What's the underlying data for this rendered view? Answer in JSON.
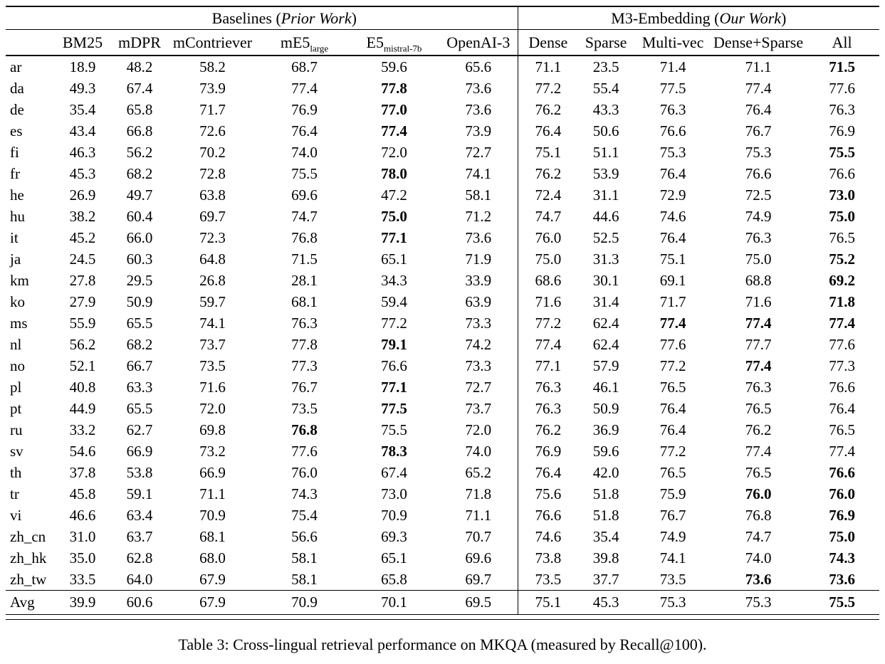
{
  "page": {
    "background": "#ffffff",
    "text_color": "#000000",
    "rule_color": "#000000"
  },
  "caption": "Table 3: Cross-lingual retrieval performance on MKQA (measured by Recall@100).",
  "table": {
    "groups": [
      {
        "prefix": "Baselines (",
        "italic": "Prior Work",
        "suffix": ")",
        "span": 6
      },
      {
        "prefix": "M3-Embedding (",
        "italic": "Our Work",
        "suffix": ")",
        "span": 5
      }
    ],
    "columns": [
      {
        "label": "BM25",
        "sub": ""
      },
      {
        "label": "mDPR",
        "sub": ""
      },
      {
        "label": "mContriever",
        "sub": ""
      },
      {
        "label": "mE5",
        "sub": "large"
      },
      {
        "label": "E5",
        "sub": "mistral-7b"
      },
      {
        "label": "OpenAI-3",
        "sub": ""
      },
      {
        "label": "Dense",
        "sub": ""
      },
      {
        "label": "Sparse",
        "sub": ""
      },
      {
        "label": "Multi-vec",
        "sub": ""
      },
      {
        "label": "Dense+Sparse",
        "sub": ""
      },
      {
        "label": "All",
        "sub": ""
      }
    ],
    "rows": [
      {
        "lang": "ar",
        "values": [
          "18.9",
          "48.2",
          "58.2",
          "68.7",
          "59.6",
          "65.6",
          "71.1",
          "23.5",
          "71.4",
          "71.1",
          "71.5"
        ],
        "bold": [
          10
        ]
      },
      {
        "lang": "da",
        "values": [
          "49.3",
          "67.4",
          "73.9",
          "77.4",
          "77.8",
          "73.6",
          "77.2",
          "55.4",
          "77.5",
          "77.4",
          "77.6"
        ],
        "bold": [
          4
        ]
      },
      {
        "lang": "de",
        "values": [
          "35.4",
          "65.8",
          "71.7",
          "76.9",
          "77.0",
          "73.6",
          "76.2",
          "43.3",
          "76.3",
          "76.4",
          "76.3"
        ],
        "bold": [
          4
        ]
      },
      {
        "lang": "es",
        "values": [
          "43.4",
          "66.8",
          "72.6",
          "76.4",
          "77.4",
          "73.9",
          "76.4",
          "50.6",
          "76.6",
          "76.7",
          "76.9"
        ],
        "bold": [
          4
        ]
      },
      {
        "lang": "fi",
        "values": [
          "46.3",
          "56.2",
          "70.2",
          "74.0",
          "72.0",
          "72.7",
          "75.1",
          "51.1",
          "75.3",
          "75.3",
          "75.5"
        ],
        "bold": [
          10
        ]
      },
      {
        "lang": "fr",
        "values": [
          "45.3",
          "68.2",
          "72.8",
          "75.5",
          "78.0",
          "74.1",
          "76.2",
          "53.9",
          "76.4",
          "76.6",
          "76.6"
        ],
        "bold": [
          4
        ]
      },
      {
        "lang": "he",
        "values": [
          "26.9",
          "49.7",
          "63.8",
          "69.6",
          "47.2",
          "58.1",
          "72.4",
          "31.1",
          "72.9",
          "72.5",
          "73.0"
        ],
        "bold": [
          10
        ]
      },
      {
        "lang": "hu",
        "values": [
          "38.2",
          "60.4",
          "69.7",
          "74.7",
          "75.0",
          "71.2",
          "74.7",
          "44.6",
          "74.6",
          "74.9",
          "75.0"
        ],
        "bold": [
          4,
          10
        ]
      },
      {
        "lang": "it",
        "values": [
          "45.2",
          "66.0",
          "72.3",
          "76.8",
          "77.1",
          "73.6",
          "76.0",
          "52.5",
          "76.4",
          "76.3",
          "76.5"
        ],
        "bold": [
          4
        ]
      },
      {
        "lang": "ja",
        "values": [
          "24.5",
          "60.3",
          "64.8",
          "71.5",
          "65.1",
          "71.9",
          "75.0",
          "31.3",
          "75.1",
          "75.0",
          "75.2"
        ],
        "bold": [
          10
        ]
      },
      {
        "lang": "km",
        "values": [
          "27.8",
          "29.5",
          "26.8",
          "28.1",
          "34.3",
          "33.9",
          "68.6",
          "30.1",
          "69.1",
          "68.8",
          "69.2"
        ],
        "bold": [
          10
        ]
      },
      {
        "lang": "ko",
        "values": [
          "27.9",
          "50.9",
          "59.7",
          "68.1",
          "59.4",
          "63.9",
          "71.6",
          "31.4",
          "71.7",
          "71.6",
          "71.8"
        ],
        "bold": [
          10
        ]
      },
      {
        "lang": "ms",
        "values": [
          "55.9",
          "65.5",
          "74.1",
          "76.3",
          "77.2",
          "73.3",
          "77.2",
          "62.4",
          "77.4",
          "77.4",
          "77.4"
        ],
        "bold": [
          8,
          9,
          10
        ]
      },
      {
        "lang": "nl",
        "values": [
          "56.2",
          "68.2",
          "73.7",
          "77.8",
          "79.1",
          "74.2",
          "77.4",
          "62.4",
          "77.6",
          "77.7",
          "77.6"
        ],
        "bold": [
          4
        ]
      },
      {
        "lang": "no",
        "values": [
          "52.1",
          "66.7",
          "73.5",
          "77.3",
          "76.6",
          "73.3",
          "77.1",
          "57.9",
          "77.2",
          "77.4",
          "77.3"
        ],
        "bold": [
          9
        ]
      },
      {
        "lang": "pl",
        "values": [
          "40.8",
          "63.3",
          "71.6",
          "76.7",
          "77.1",
          "72.7",
          "76.3",
          "46.1",
          "76.5",
          "76.3",
          "76.6"
        ],
        "bold": [
          4
        ]
      },
      {
        "lang": "pt",
        "values": [
          "44.9",
          "65.5",
          "72.0",
          "73.5",
          "77.5",
          "73.7",
          "76.3",
          "50.9",
          "76.4",
          "76.5",
          "76.4"
        ],
        "bold": [
          4
        ]
      },
      {
        "lang": "ru",
        "values": [
          "33.2",
          "62.7",
          "69.8",
          "76.8",
          "75.5",
          "72.0",
          "76.2",
          "36.9",
          "76.4",
          "76.2",
          "76.5"
        ],
        "bold": [
          3
        ]
      },
      {
        "lang": "sv",
        "values": [
          "54.6",
          "66.9",
          "73.2",
          "77.6",
          "78.3",
          "74.0",
          "76.9",
          "59.6",
          "77.2",
          "77.4",
          "77.4"
        ],
        "bold": [
          4
        ]
      },
      {
        "lang": "th",
        "values": [
          "37.8",
          "53.8",
          "66.9",
          "76.0",
          "67.4",
          "65.2",
          "76.4",
          "42.0",
          "76.5",
          "76.5",
          "76.6"
        ],
        "bold": [
          10
        ]
      },
      {
        "lang": "tr",
        "values": [
          "45.8",
          "59.1",
          "71.1",
          "74.3",
          "73.0",
          "71.8",
          "75.6",
          "51.8",
          "75.9",
          "76.0",
          "76.0"
        ],
        "bold": [
          9,
          10
        ]
      },
      {
        "lang": "vi",
        "values": [
          "46.6",
          "63.4",
          "70.9",
          "75.4",
          "70.9",
          "71.1",
          "76.6",
          "51.8",
          "76.7",
          "76.8",
          "76.9"
        ],
        "bold": [
          10
        ]
      },
      {
        "lang": "zh_cn",
        "values": [
          "31.0",
          "63.7",
          "68.1",
          "56.6",
          "69.3",
          "70.7",
          "74.6",
          "35.4",
          "74.9",
          "74.7",
          "75.0"
        ],
        "bold": [
          10
        ]
      },
      {
        "lang": "zh_hk",
        "values": [
          "35.0",
          "62.8",
          "68.0",
          "58.1",
          "65.1",
          "69.6",
          "73.8",
          "39.8",
          "74.1",
          "74.0",
          "74.3"
        ],
        "bold": [
          10
        ]
      },
      {
        "lang": "zh_tw",
        "values": [
          "33.5",
          "64.0",
          "67.9",
          "58.1",
          "65.8",
          "69.7",
          "73.5",
          "37.7",
          "73.5",
          "73.6",
          "73.6"
        ],
        "bold": [
          9,
          10
        ]
      }
    ],
    "avg_row": {
      "lang": "Avg",
      "values": [
        "39.9",
        "60.6",
        "67.9",
        "70.9",
        "70.1",
        "69.5",
        "75.1",
        "45.3",
        "75.3",
        "75.3",
        "75.5"
      ],
      "bold": [
        10
      ]
    }
  }
}
